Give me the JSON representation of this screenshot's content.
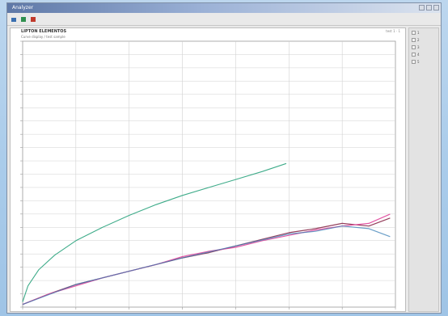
{
  "window": {
    "title": "Analyzer",
    "toolbar": [
      {
        "label": "",
        "icon": "open-folder-icon",
        "color": "#3a6fb0"
      },
      {
        "label": "",
        "icon": "chart-icon",
        "color": "#2f8f4e"
      },
      {
        "label": "",
        "icon": "delete-icon",
        "color": "#c0392b"
      }
    ]
  },
  "chart_header": {
    "title": "LIPTON ELEMENTOS",
    "subtitle": "Curve display / test sample",
    "right_info": "test 1 · 1"
  },
  "sidebar": {
    "items": [
      {
        "label": "1"
      },
      {
        "label": "2"
      },
      {
        "label": "3"
      },
      {
        "label": "4"
      },
      {
        "label": "5"
      }
    ]
  },
  "chart_data": {
    "type": "line",
    "x_range": [
      0,
      7
    ],
    "y_range": [
      0,
      20
    ],
    "grid": true,
    "series": [
      {
        "name": "",
        "color": "#2aa37d",
        "points": [
          [
            0,
            0.4
          ],
          [
            0.1,
            1.6
          ],
          [
            0.3,
            2.8
          ],
          [
            0.6,
            3.9
          ],
          [
            1,
            5.0
          ],
          [
            1.5,
            6.0
          ],
          [
            2,
            6.9
          ],
          [
            2.5,
            7.7
          ],
          [
            3,
            8.4
          ],
          [
            3.5,
            9.0
          ],
          [
            4,
            9.6
          ],
          [
            4.5,
            10.2
          ],
          [
            4.95,
            10.8
          ]
        ]
      },
      {
        "name": "",
        "color": "#8a2a4a",
        "points": [
          [
            0,
            0.2
          ],
          [
            0.5,
            1.0
          ],
          [
            1,
            1.7
          ],
          [
            1.5,
            2.2
          ],
          [
            2,
            2.7
          ],
          [
            2.5,
            3.2
          ],
          [
            3,
            3.7
          ],
          [
            3.5,
            4.1
          ],
          [
            4,
            4.6
          ],
          [
            4.5,
            5.1
          ],
          [
            5,
            5.6
          ],
          [
            5.5,
            5.9
          ],
          [
            6,
            6.3
          ],
          [
            6.5,
            6.1
          ],
          [
            6.9,
            6.7
          ]
        ]
      },
      {
        "name": "",
        "color": "#e0459a",
        "points": [
          [
            0,
            0.2
          ],
          [
            0.5,
            1.0
          ],
          [
            1,
            1.6
          ],
          [
            1.5,
            2.2
          ],
          [
            2,
            2.7
          ],
          [
            2.5,
            3.2
          ],
          [
            3,
            3.8
          ],
          [
            3.5,
            4.2
          ],
          [
            4,
            4.5
          ],
          [
            4.5,
            5.0
          ],
          [
            5,
            5.4
          ],
          [
            5.5,
            5.8
          ],
          [
            6,
            6.1
          ],
          [
            6.5,
            6.3
          ],
          [
            6.9,
            7.0
          ]
        ]
      },
      {
        "name": "",
        "color": "#3a7fb5",
        "points": [
          [
            0,
            0.2
          ],
          [
            1,
            1.7
          ],
          [
            2,
            2.7
          ],
          [
            3,
            3.7
          ],
          [
            4,
            4.6
          ],
          [
            5,
            5.5
          ],
          [
            5.5,
            5.7
          ],
          [
            6,
            6.1
          ],
          [
            6.5,
            5.9
          ],
          [
            6.9,
            5.3
          ]
        ]
      }
    ]
  }
}
